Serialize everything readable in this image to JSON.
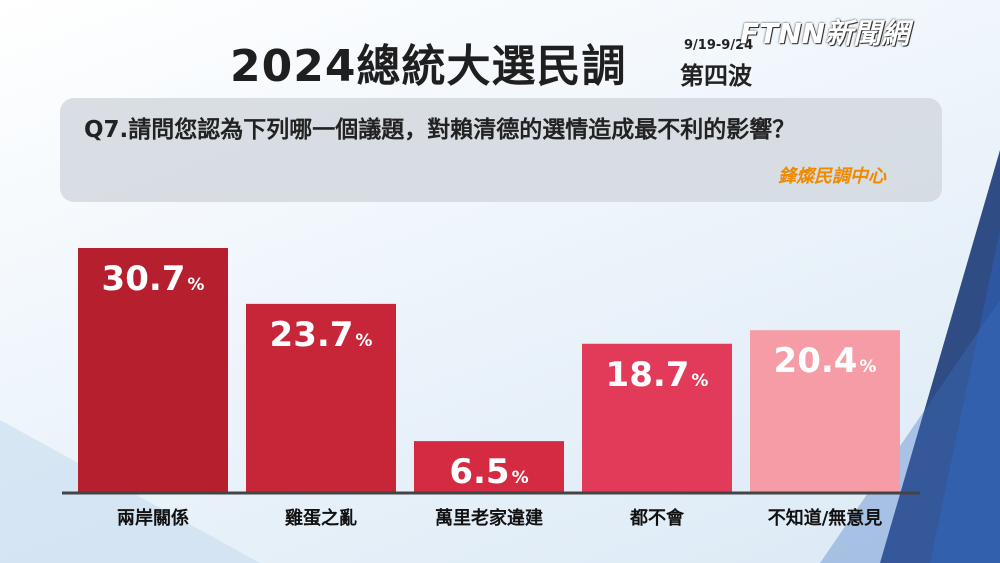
{
  "chart_data": {
    "type": "bar",
    "title": "2024總統大選民調",
    "date": "9/19-9/24",
    "subtitle": "第四波",
    "logo": "FTNN新聞網",
    "question": "Q7.請問您認為下列哪一個議題，對賴清德的選情造成最不利的影響？",
    "source": "鋒燦民調中心",
    "categories": [
      "兩岸關係",
      "雞蛋之亂",
      "萬里老家違建",
      "都不會",
      "不知道/無意見"
    ],
    "values": [
      30.7,
      23.7,
      6.5,
      18.7,
      20.4
    ],
    "unit": "%",
    "colors": [
      "#b51f2e",
      "#c62638",
      "#d42b42",
      "#e23a59",
      "#f59ca6"
    ],
    "ylim": [
      0,
      31
    ]
  }
}
